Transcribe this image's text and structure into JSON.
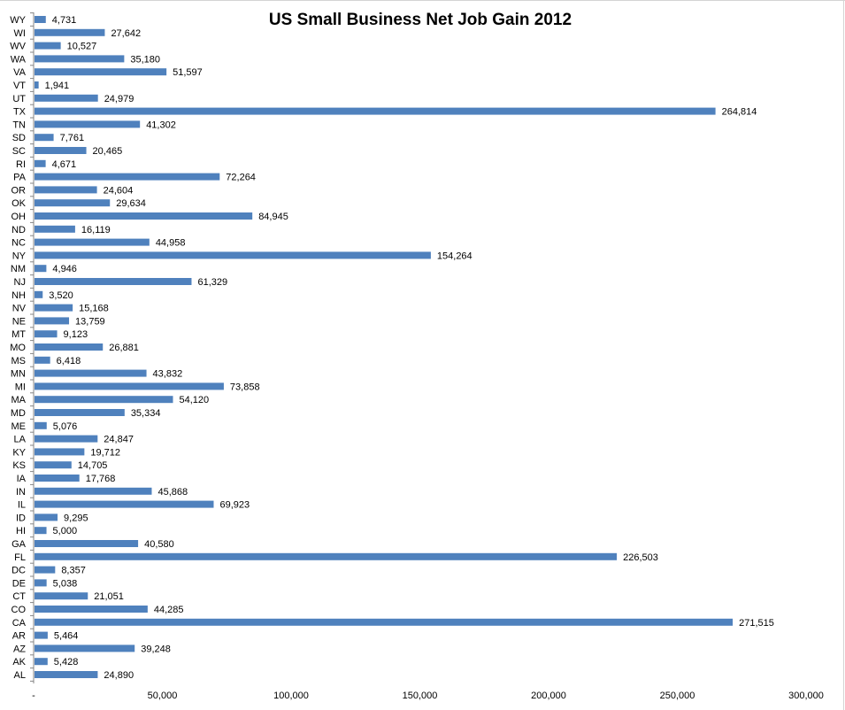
{
  "chart_data": {
    "type": "bar",
    "orientation": "horizontal",
    "title": "US Small Business Net Job Gain 2012",
    "xlabel": "",
    "ylabel": "",
    "xlim": [
      0,
      300000
    ],
    "x_ticks": [
      0,
      50000,
      100000,
      150000,
      200000,
      250000,
      300000
    ],
    "x_tick_labels": [
      "-",
      "50,000",
      "100,000",
      "150,000",
      "200,000",
      "250,000",
      "300,000"
    ],
    "grid": false,
    "legend": "none",
    "bar_color": "#4f81bd",
    "categories": [
      "WY",
      "WI",
      "WV",
      "WA",
      "VA",
      "VT",
      "UT",
      "TX",
      "TN",
      "SD",
      "SC",
      "RI",
      "PA",
      "OR",
      "OK",
      "OH",
      "ND",
      "NC",
      "NY",
      "NM",
      "NJ",
      "NH",
      "NV",
      "NE",
      "MT",
      "MO",
      "MS",
      "MN",
      "MI",
      "MA",
      "MD",
      "ME",
      "LA",
      "KY",
      "KS",
      "IA",
      "IN",
      "IL",
      "ID",
      "HI",
      "GA",
      "FL",
      "DC",
      "DE",
      "CT",
      "CO",
      "CA",
      "AR",
      "AZ",
      "AK",
      "AL"
    ],
    "values": [
      4731,
      27642,
      10527,
      35180,
      51597,
      1941,
      24979,
      264814,
      41302,
      7761,
      20465,
      4671,
      72264,
      24604,
      29634,
      84945,
      16119,
      44958,
      154264,
      4946,
      61329,
      3520,
      15168,
      13759,
      9123,
      26881,
      6418,
      43832,
      73858,
      54120,
      35334,
      5076,
      24847,
      19712,
      14705,
      17768,
      45868,
      69923,
      9295,
      5000,
      40580,
      226503,
      8357,
      5038,
      21051,
      44285,
      271515,
      5464,
      39248,
      5428,
      24890
    ],
    "data_labels": [
      "4,731",
      "27,642",
      "10,527",
      "35,180",
      "51,597",
      "1,941",
      "24,979",
      "264,814",
      "41,302",
      "7,761",
      "20,465",
      "4,671",
      "72,264",
      "24,604",
      "29,634",
      "84,945",
      "16,119",
      "44,958",
      "154,264",
      "4,946",
      "61,329",
      "3,520",
      "15,168",
      "13,759",
      "9,123",
      "26,881",
      "6,418",
      "43,832",
      "73,858",
      "54,120",
      "35,334",
      "5,076",
      "24,847",
      "19,712",
      "14,705",
      "17,768",
      "45,868",
      "69,923",
      "9,295",
      "5,000",
      "40,580",
      "226,503",
      "8,357",
      "5,038",
      "21,051",
      "44,285",
      "271,515",
      "5,464",
      "39,248",
      "5,428",
      "24,890"
    ]
  }
}
